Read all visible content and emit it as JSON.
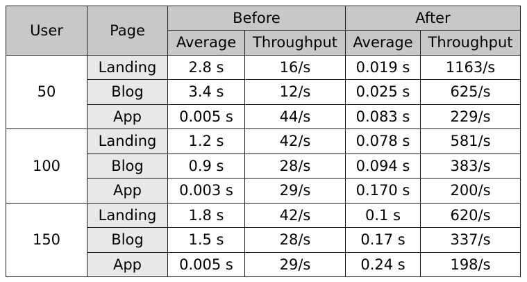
{
  "table": {
    "headers": {
      "user": "User",
      "page": "Page",
      "before": "Before",
      "after": "After",
      "average": "Average",
      "throughput": "Throughput"
    },
    "groups": [
      {
        "user": "50",
        "rows": [
          {
            "page": "Landing",
            "before_avg": "2.8 s",
            "before_tp": "16/s",
            "after_avg": "0.019 s",
            "after_tp": "1163/s"
          },
          {
            "page": "Blog",
            "before_avg": "3.4 s",
            "before_tp": "12/s",
            "after_avg": "0.025 s",
            "after_tp": "625/s"
          },
          {
            "page": "App",
            "before_avg": "0.005 s",
            "before_tp": "44/s",
            "after_avg": "0.083 s",
            "after_tp": "229/s"
          }
        ]
      },
      {
        "user": "100",
        "rows": [
          {
            "page": "Landing",
            "before_avg": "1.2 s",
            "before_tp": "42/s",
            "after_avg": "0.078 s",
            "after_tp": "581/s"
          },
          {
            "page": "Blog",
            "before_avg": "0.9 s",
            "before_tp": "28/s",
            "after_avg": "0.094 s",
            "after_tp": "383/s"
          },
          {
            "page": "App",
            "before_avg": "0.003 s",
            "before_tp": "29/s",
            "after_avg": "0.170 s",
            "after_tp": "200/s"
          }
        ]
      },
      {
        "user": "150",
        "rows": [
          {
            "page": "Landing",
            "before_avg": "1.8 s",
            "before_tp": "42/s",
            "after_avg": "0.1 s",
            "after_tp": "620/s"
          },
          {
            "page": "Blog",
            "before_avg": "1.5 s",
            "before_tp": "28/s",
            "after_avg": "0.17 s",
            "after_tp": "337/s"
          },
          {
            "page": "App",
            "before_avg": "0.005 s",
            "before_tp": "29/s",
            "after_avg": "0.24 s",
            "after_tp": "198/s"
          }
        ]
      }
    ]
  },
  "colors": {
    "header_fill": "#c8c8c8",
    "page_fill": "#e8e8e8",
    "border": "#1a1a1a"
  }
}
